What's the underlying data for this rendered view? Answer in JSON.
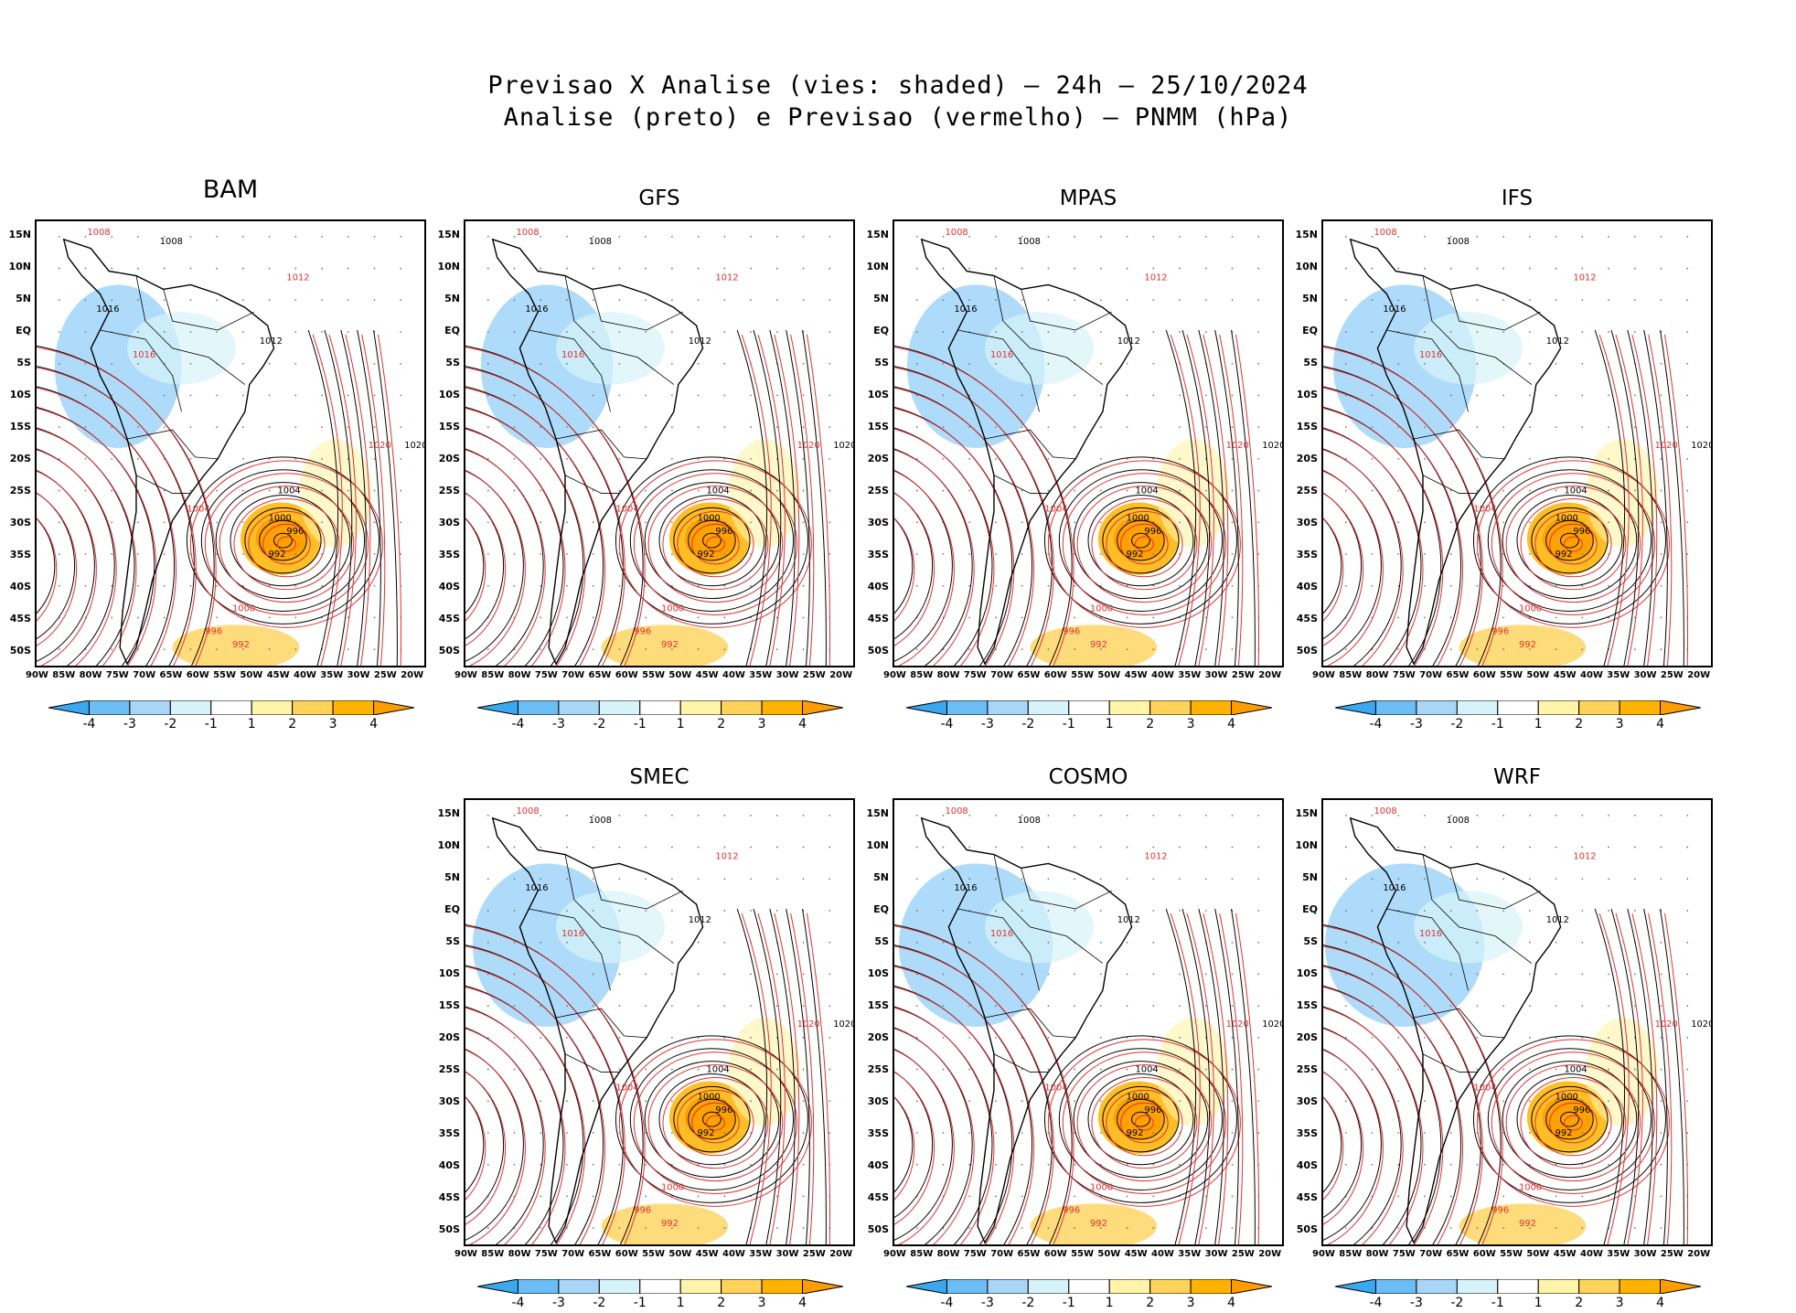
{
  "header": {
    "title_line1": "Previsao X Analise (vies: shaded) – 24h – 25/10/2024",
    "title_line2": "Analise (preto) e Previsao (vermelho) – PNMM (hPa)"
  },
  "panels": [
    {
      "name": "BAM"
    },
    {
      "name": "GFS"
    },
    {
      "name": "MPAS"
    },
    {
      "name": "IFS"
    },
    {
      "name": "SMEC"
    },
    {
      "name": "COSMO"
    },
    {
      "name": "WRF"
    }
  ],
  "axes": {
    "lat_labels": [
      "15N",
      "10N",
      "5N",
      "EQ",
      "5S",
      "10S",
      "15S",
      "20S",
      "25S",
      "30S",
      "35S",
      "40S",
      "45S",
      "50S"
    ],
    "lon_labels": [
      "90W",
      "85W",
      "80W",
      "75W",
      "70W",
      "65W",
      "60W",
      "55W",
      "50W",
      "45W",
      "40W",
      "35W",
      "30W",
      "25W",
      "20W"
    ]
  },
  "colorbar": {
    "labels": [
      "-4",
      "-3",
      "-2",
      "-1",
      "1",
      "2",
      "3",
      "4"
    ],
    "colors": [
      "#3aa7ee",
      "#6cbdf4",
      "#a9d6f7",
      "#d7f3fa",
      "#ffffff",
      "#fff4a8",
      "#ffd35a",
      "#ffb300",
      "#ff9d00"
    ]
  },
  "contour_labels": {
    "analysis": [
      "1008",
      "1012",
      "1016",
      "1020",
      "1004",
      "1000",
      "996",
      "992"
    ],
    "forecast": [
      "1008",
      "1012",
      "1016",
      "1020",
      "1004",
      "1000",
      "996",
      "992"
    ]
  },
  "colors": {
    "analysis": "#000000",
    "forecast": "#e03030"
  }
}
